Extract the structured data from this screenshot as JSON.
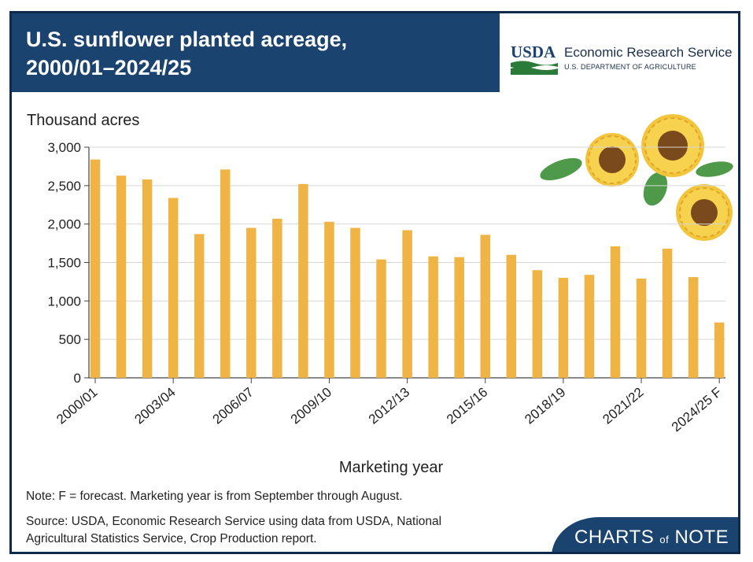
{
  "header": {
    "title_line1": "U.S. sunflower planted acreage,",
    "title_line2": "2000/01–2024/25",
    "logo_text": "USDA",
    "agency": "Economic Research Service",
    "department": "U.S. DEPARTMENT OF AGRICULTURE"
  },
  "chart_data": {
    "type": "bar",
    "title": "U.S. sunflower planted acreage, 2000/01–2024/25",
    "ylabel": "Thousand acres",
    "xlabel": "Marketing year",
    "ylim": [
      0,
      3000
    ],
    "y_ticks": [
      "0",
      "500",
      "1,000",
      "1,500",
      "2,000",
      "2,500",
      "3,000"
    ],
    "y_tick_values": [
      0,
      500,
      1000,
      1500,
      2000,
      2500,
      3000
    ],
    "categories": [
      "2000/01",
      "2001/02",
      "2002/03",
      "2003/04",
      "2004/05",
      "2005/06",
      "2006/07",
      "2007/08",
      "2008/09",
      "2009/10",
      "2010/11",
      "2011/12",
      "2012/13",
      "2013/14",
      "2014/15",
      "2015/16",
      "2016/17",
      "2017/18",
      "2018/19",
      "2019/20",
      "2020/21",
      "2021/22",
      "2022/23",
      "2023/24",
      "2024/25 F"
    ],
    "x_tick_labels": [
      "2000/01",
      "2003/04",
      "2006/07",
      "2009/10",
      "2012/13",
      "2015/16",
      "2018/19",
      "2021/22",
      "2024/25 F"
    ],
    "x_tick_label_indices": [
      0,
      3,
      6,
      9,
      12,
      15,
      18,
      21,
      24
    ],
    "values": [
      2840,
      2630,
      2580,
      2340,
      1870,
      2710,
      1950,
      2070,
      2520,
      2030,
      1950,
      1540,
      1920,
      1580,
      1570,
      1860,
      1600,
      1400,
      1300,
      1340,
      1710,
      1290,
      1680,
      1310,
      720
    ],
    "bar_color": "#f0b445",
    "grid": true,
    "legend": "none"
  },
  "footer": {
    "note": "Note: F = forecast. Marketing year is from September through August.",
    "source_line1": "Source: USDA, Economic Research Service using data from USDA, National",
    "source_line2": "Agricultural Statistics Service, Crop Production report.",
    "brand_part1": "CHARTS",
    "brand_part2": "of",
    "brand_part3": "NOTE"
  }
}
